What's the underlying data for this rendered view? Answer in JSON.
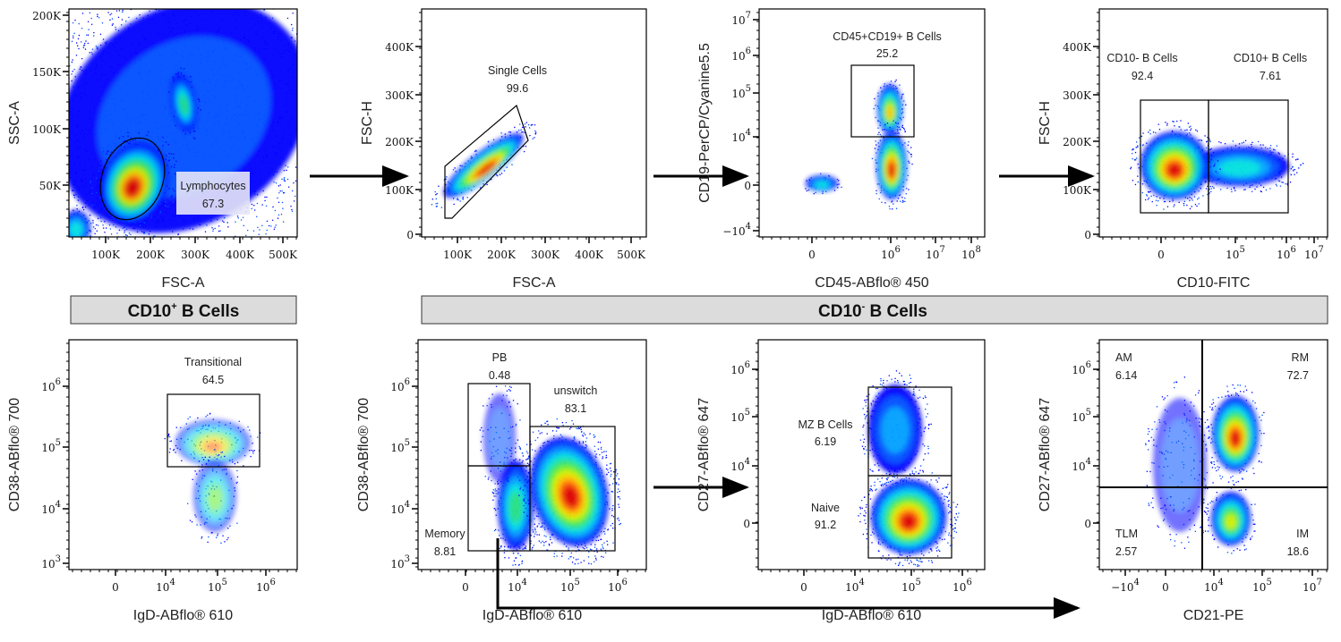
{
  "headers": {
    "cd10_pos": {
      "main": "CD10",
      "sup": "+",
      "rest": " B Cells"
    },
    "cd10_neg": {
      "main": "CD10",
      "sup": "-",
      "rest": " B Cells"
    }
  },
  "chart_data": [
    {
      "type": "scatter",
      "plot": "density",
      "xlabel": "FSC-A",
      "ylabel": "SSC-A",
      "xticks": [
        "100K",
        "200K",
        "300K",
        "400K",
        "500K"
      ],
      "yticks": [
        "200K",
        "150K",
        "100K",
        "50K"
      ],
      "gates": [
        {
          "name": "Lymphocytes",
          "value": "67.3"
        }
      ]
    },
    {
      "type": "scatter",
      "plot": "density",
      "xlabel": "FSC-A",
      "ylabel": "FSC-H",
      "xticks": [
        "100K",
        "200K",
        "300K",
        "400K",
        "500K"
      ],
      "yticks": [
        "400K",
        "300K",
        "200K",
        "100K",
        "0"
      ],
      "gates": [
        {
          "name": "Single Cells",
          "value": "99.6"
        }
      ]
    },
    {
      "type": "scatter",
      "plot": "density",
      "xlabel": "CD45-ABflo® 450",
      "ylabel": "CD19-PerCP/Cyanine5.5",
      "xticks": [
        "0",
        "10^6",
        "10^7",
        "10^8"
      ],
      "yticks": [
        "10^7",
        "10^6",
        "10^5",
        "10^4",
        "0",
        "-10^4"
      ],
      "gates": [
        {
          "name": "CD45+CD19+ B Cells",
          "value": "25.2"
        }
      ]
    },
    {
      "type": "scatter",
      "plot": "density",
      "xlabel": "CD10-FITC",
      "ylabel": "FSC-H",
      "xticks": [
        "0",
        "10^5",
        "10^6",
        "10^7"
      ],
      "yticks": [
        "400K",
        "300K",
        "200K",
        "100K",
        "0"
      ],
      "gates": [
        {
          "name": "CD10- B Cells",
          "value": "92.4"
        },
        {
          "name": "CD10+ B Cells",
          "value": "7.61"
        }
      ]
    },
    {
      "type": "scatter",
      "plot": "density",
      "xlabel": "IgD-ABflo® 610",
      "ylabel": "CD38-ABflo® 700",
      "xticks": [
        "0",
        "10^4",
        "10^5",
        "10^6"
      ],
      "yticks": [
        "10^6",
        "10^5",
        "10^4",
        "10^3"
      ],
      "gates": [
        {
          "name": "Transitional",
          "value": "64.5"
        }
      ]
    },
    {
      "type": "scatter",
      "plot": "density",
      "xlabel": "IgD-ABflo® 610",
      "ylabel": "CD38-ABflo® 700",
      "xticks": [
        "0",
        "10^4",
        "10^5",
        "10^6"
      ],
      "yticks": [
        "10^6",
        "10^5",
        "10^4",
        "10^3"
      ],
      "gates": [
        {
          "name": "PB",
          "value": "0.48"
        },
        {
          "name": "unswitch",
          "value": "83.1"
        },
        {
          "name": "Memory",
          "value": "8.81"
        }
      ]
    },
    {
      "type": "scatter",
      "plot": "density",
      "xlabel": "IgD-ABflo® 610",
      "ylabel": "CD27-ABflo® 647",
      "xticks": [
        "0",
        "10^4",
        "10^5",
        "10^6"
      ],
      "yticks": [
        "10^6",
        "10^5",
        "10^4",
        "0"
      ],
      "gates": [
        {
          "name": "MZ B Cells",
          "value": "6.19"
        },
        {
          "name": "Naive",
          "value": "91.2"
        }
      ]
    },
    {
      "type": "scatter",
      "plot": "density",
      "xlabel": "CD21-PE",
      "ylabel": "CD27-ABflo® 647",
      "xticks": [
        "-10^4",
        "0",
        "10^4",
        "10^5",
        "10^7"
      ],
      "yticks": [
        "10^6",
        "10^5",
        "10^4",
        "0"
      ],
      "gates": [
        {
          "name": "AM",
          "value": "6.14"
        },
        {
          "name": "RM",
          "value": "72.7"
        },
        {
          "name": "TLM",
          "value": "2.57"
        },
        {
          "name": "IM",
          "value": "18.6"
        }
      ]
    }
  ],
  "colors": {
    "density": [
      "#0000ff",
      "#0050ff",
      "#00a0ff",
      "#00e0e0",
      "#20e080",
      "#60f020",
      "#d0f000",
      "#ffc000",
      "#ff6000",
      "#e00000"
    ],
    "header_bg": "#dcdcdc"
  }
}
